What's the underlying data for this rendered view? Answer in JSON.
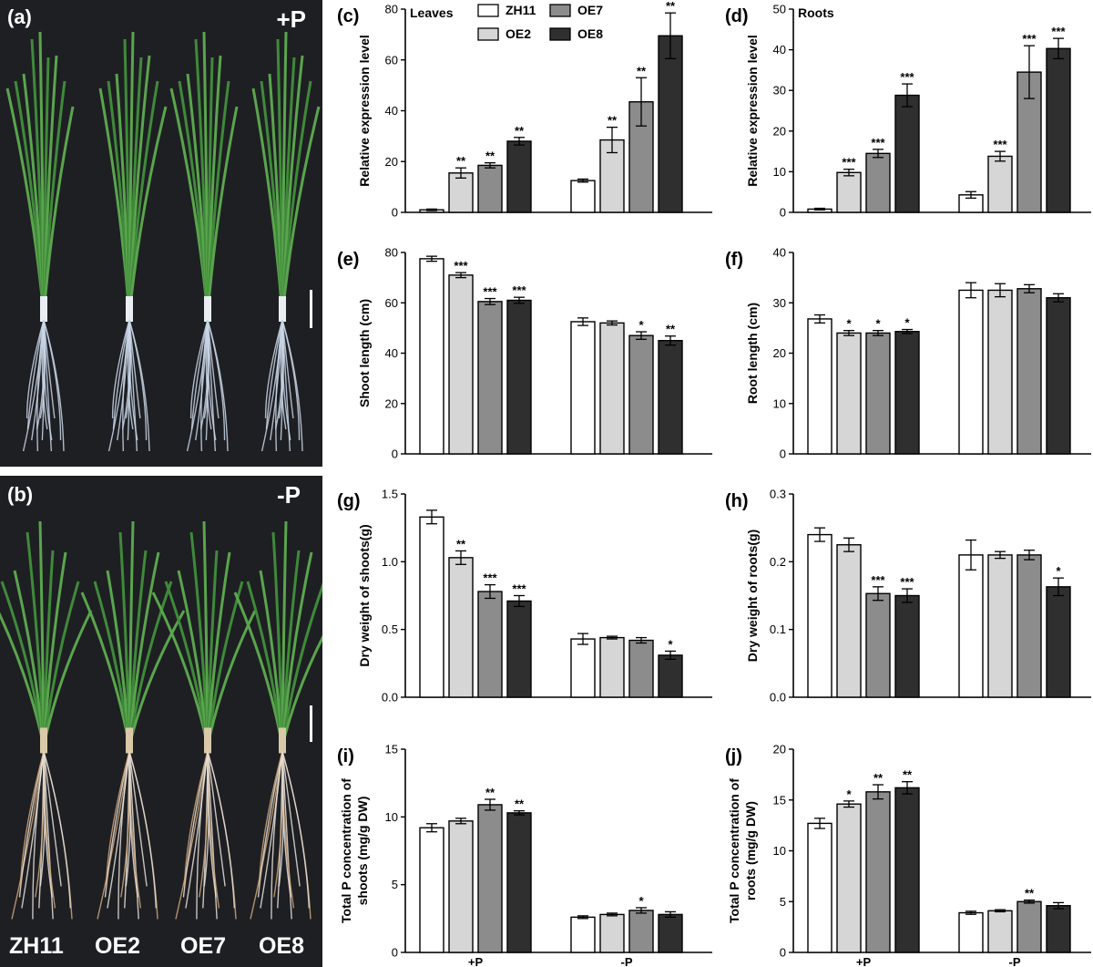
{
  "photos": {
    "a": {
      "label": "(a)",
      "condition": "+P"
    },
    "b": {
      "label": "(b)",
      "condition": "-P"
    },
    "genotypes": [
      "ZH11",
      "OE2",
      "OE7",
      "OE8"
    ]
  },
  "legend": {
    "entries": [
      "ZH11",
      "OE2",
      "OE7",
      "OE8"
    ],
    "colors": [
      "#ffffff",
      "#d6d6d6",
      "#8c8c8c",
      "#2f2f2f"
    ]
  },
  "groups": [
    "+P",
    "-P"
  ],
  "chart_data": [
    {
      "id": "c",
      "type": "bar",
      "panel_label": "(c)",
      "title": "Leaves",
      "xlabel": "",
      "ylabel": "Relative expression level",
      "ylim": [
        0,
        80
      ],
      "yticks": [
        0,
        20,
        40,
        60,
        80
      ],
      "categories": [
        "+P",
        "-P"
      ],
      "series": [
        {
          "name": "ZH11",
          "values": [
            1,
            12.5
          ],
          "err": [
            0.3,
            0.6
          ],
          "sig": [
            "",
            ""
          ]
        },
        {
          "name": "OE2",
          "values": [
            15.5,
            28.5
          ],
          "err": [
            2.0,
            5.0
          ],
          "sig": [
            "**",
            "**"
          ]
        },
        {
          "name": "OE7",
          "values": [
            18.5,
            43.5
          ],
          "err": [
            1.0,
            9.5
          ],
          "sig": [
            "**",
            "**"
          ]
        },
        {
          "name": "OE8",
          "values": [
            28,
            69.5
          ],
          "err": [
            1.5,
            9.0
          ],
          "sig": [
            "**",
            "**"
          ]
        }
      ]
    },
    {
      "id": "d",
      "type": "bar",
      "panel_label": "(d)",
      "title": "Roots",
      "xlabel": "",
      "ylabel": "Relative expression level",
      "ylim": [
        0,
        50
      ],
      "yticks": [
        0,
        10,
        20,
        30,
        40,
        50
      ],
      "categories": [
        "+P",
        "-P"
      ],
      "series": [
        {
          "name": "ZH11",
          "values": [
            0.8,
            4.3
          ],
          "err": [
            0.2,
            0.8
          ],
          "sig": [
            "",
            ""
          ]
        },
        {
          "name": "OE2",
          "values": [
            9.8,
            13.8
          ],
          "err": [
            0.8,
            1.2
          ],
          "sig": [
            "***",
            "***"
          ]
        },
        {
          "name": "OE7",
          "values": [
            14.5,
            34.5
          ],
          "err": [
            1.0,
            6.5
          ],
          "sig": [
            "***",
            "***"
          ]
        },
        {
          "name": "OE8",
          "values": [
            28.8,
            40.3
          ],
          "err": [
            2.8,
            2.5
          ],
          "sig": [
            "***",
            "***"
          ]
        }
      ]
    },
    {
      "id": "e",
      "type": "bar",
      "panel_label": "(e)",
      "title": "",
      "xlabel": "",
      "ylabel": "Shoot length (cm)",
      "ylim": [
        0,
        80
      ],
      "yticks": [
        0,
        20,
        40,
        60,
        80
      ],
      "categories": [
        "+P",
        "-P"
      ],
      "series": [
        {
          "name": "ZH11",
          "values": [
            77.5,
            52.5
          ],
          "err": [
            1.0,
            1.5
          ],
          "sig": [
            "",
            ""
          ]
        },
        {
          "name": "OE2",
          "values": [
            71,
            52
          ],
          "err": [
            1.0,
            0.8
          ],
          "sig": [
            "***",
            ""
          ]
        },
        {
          "name": "OE7",
          "values": [
            60.5,
            47
          ],
          "err": [
            1.2,
            1.5
          ],
          "sig": [
            "***",
            "*"
          ]
        },
        {
          "name": "OE8",
          "values": [
            61,
            45
          ],
          "err": [
            1.2,
            1.8
          ],
          "sig": [
            "***",
            "**"
          ]
        }
      ]
    },
    {
      "id": "f",
      "type": "bar",
      "panel_label": "(f)",
      "title": "",
      "xlabel": "",
      "ylabel": "Root length (cm)",
      "ylim": [
        0,
        40
      ],
      "yticks": [
        0,
        10,
        20,
        30,
        40
      ],
      "categories": [
        "+P",
        "-P"
      ],
      "series": [
        {
          "name": "ZH11",
          "values": [
            26.8,
            32.5
          ],
          "err": [
            0.8,
            1.5
          ],
          "sig": [
            "",
            ""
          ]
        },
        {
          "name": "OE2",
          "values": [
            24,
            32.5
          ],
          "err": [
            0.5,
            1.3
          ],
          "sig": [
            "*",
            ""
          ]
        },
        {
          "name": "OE7",
          "values": [
            24,
            32.8
          ],
          "err": [
            0.5,
            0.8
          ],
          "sig": [
            "*",
            ""
          ]
        },
        {
          "name": "OE8",
          "values": [
            24.3,
            31
          ],
          "err": [
            0.4,
            0.8
          ],
          "sig": [
            "*",
            ""
          ]
        }
      ]
    },
    {
      "id": "g",
      "type": "bar",
      "panel_label": "(g)",
      "title": "",
      "xlabel": "",
      "ylabel": "Dry weight of shoots(g)",
      "ylim": [
        0,
        1.5
      ],
      "yticks": [
        0.0,
        0.5,
        1.0,
        1.5
      ],
      "categories": [
        "+P",
        "-P"
      ],
      "series": [
        {
          "name": "ZH11",
          "values": [
            1.33,
            0.43
          ],
          "err": [
            0.05,
            0.04
          ],
          "sig": [
            "",
            ""
          ]
        },
        {
          "name": "OE2",
          "values": [
            1.03,
            0.44
          ],
          "err": [
            0.05,
            0.01
          ],
          "sig": [
            "**",
            ""
          ]
        },
        {
          "name": "OE7",
          "values": [
            0.78,
            0.42
          ],
          "err": [
            0.05,
            0.02
          ],
          "sig": [
            "***",
            ""
          ]
        },
        {
          "name": "OE8",
          "values": [
            0.71,
            0.31
          ],
          "err": [
            0.04,
            0.03
          ],
          "sig": [
            "***",
            "*"
          ]
        }
      ]
    },
    {
      "id": "h",
      "type": "bar",
      "panel_label": "(h)",
      "title": "",
      "xlabel": "",
      "ylabel": "Dry weight of roots(g)",
      "ylim": [
        0,
        0.3
      ],
      "yticks": [
        0.0,
        0.1,
        0.2,
        0.3
      ],
      "categories": [
        "+P",
        "-P"
      ],
      "series": [
        {
          "name": "ZH11",
          "values": [
            0.24,
            0.21
          ],
          "err": [
            0.01,
            0.022
          ],
          "sig": [
            "",
            ""
          ]
        },
        {
          "name": "OE2",
          "values": [
            0.225,
            0.21
          ],
          "err": [
            0.01,
            0.005
          ],
          "sig": [
            "",
            ""
          ]
        },
        {
          "name": "OE7",
          "values": [
            0.153,
            0.21
          ],
          "err": [
            0.01,
            0.007
          ],
          "sig": [
            "***",
            ""
          ]
        },
        {
          "name": "OE8",
          "values": [
            0.15,
            0.163
          ],
          "err": [
            0.01,
            0.013
          ],
          "sig": [
            "***",
            "*"
          ]
        }
      ]
    },
    {
      "id": "i",
      "type": "bar",
      "panel_label": "(i)",
      "title": "",
      "xlabel": "",
      "ylabel": [
        "Total P concentration of",
        "shoots (mg/g DW)"
      ],
      "ylim": [
        0,
        15
      ],
      "yticks": [
        0,
        5,
        10,
        15
      ],
      "categories": [
        "+P",
        "-P"
      ],
      "series": [
        {
          "name": "ZH11",
          "values": [
            9.2,
            2.6
          ],
          "err": [
            0.3,
            0.1
          ],
          "sig": [
            "",
            ""
          ]
        },
        {
          "name": "OE2",
          "values": [
            9.7,
            2.8
          ],
          "err": [
            0.2,
            0.1
          ],
          "sig": [
            "",
            ""
          ]
        },
        {
          "name": "OE7",
          "values": [
            10.9,
            3.1
          ],
          "err": [
            0.4,
            0.2
          ],
          "sig": [
            "**",
            "*"
          ]
        },
        {
          "name": "OE8",
          "values": [
            10.3,
            2.8
          ],
          "err": [
            0.15,
            0.2
          ],
          "sig": [
            "**",
            ""
          ]
        }
      ]
    },
    {
      "id": "j",
      "type": "bar",
      "panel_label": "(j)",
      "title": "",
      "xlabel": "",
      "ylabel": [
        "Total P concentration of",
        "roots (mg/g DW)"
      ],
      "ylim": [
        0,
        20
      ],
      "yticks": [
        0,
        5,
        10,
        15,
        20
      ],
      "categories": [
        "+P",
        "-P"
      ],
      "series": [
        {
          "name": "ZH11",
          "values": [
            12.7,
            3.9
          ],
          "err": [
            0.5,
            0.15
          ],
          "sig": [
            "",
            ""
          ]
        },
        {
          "name": "OE2",
          "values": [
            14.6,
            4.1
          ],
          "err": [
            0.3,
            0.1
          ],
          "sig": [
            "*",
            ""
          ]
        },
        {
          "name": "OE7",
          "values": [
            15.8,
            5.0
          ],
          "err": [
            0.7,
            0.15
          ],
          "sig": [
            "**",
            "**"
          ]
        },
        {
          "name": "OE8",
          "values": [
            16.2,
            4.6
          ],
          "err": [
            0.6,
            0.3
          ],
          "sig": [
            "**",
            ""
          ]
        }
      ]
    }
  ]
}
